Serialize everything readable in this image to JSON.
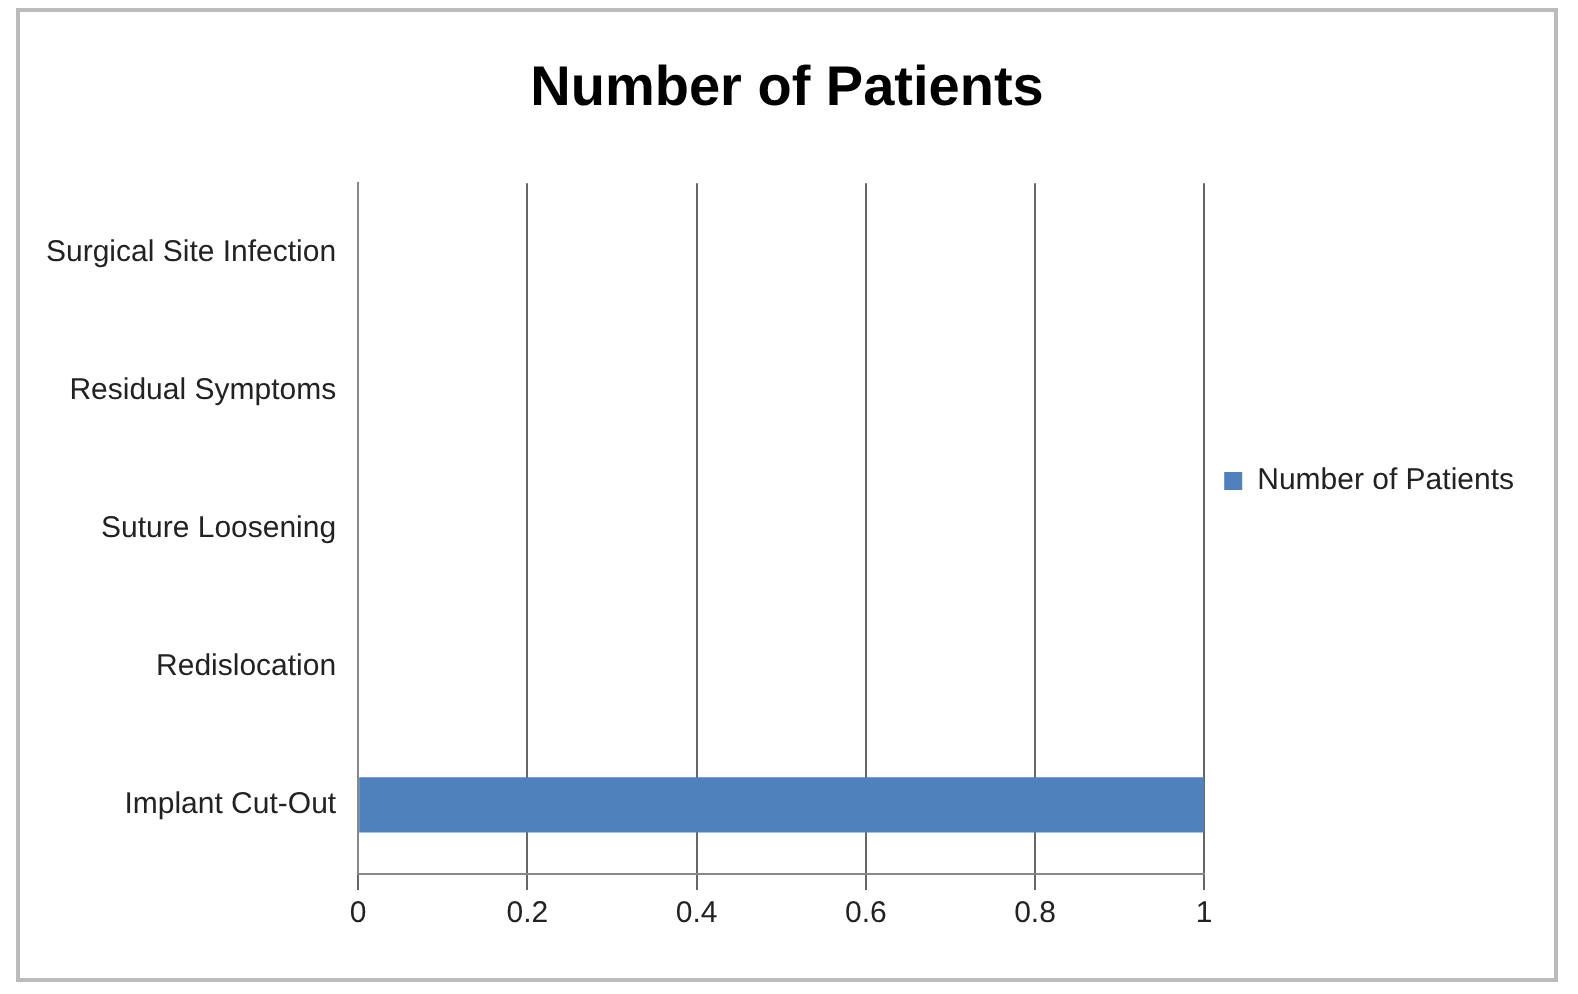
{
  "chart_data": {
    "type": "bar",
    "title": "Number of Patients",
    "orientation": "horizontal",
    "categories": [
      "Surgical Site Infection",
      "Residual Symptoms",
      "Suture Loosening",
      "Redislocation",
      "Implant Cut-Out"
    ],
    "series": [
      {
        "name": "Number of Patients",
        "color": "#4f81bd",
        "values": [
          0,
          0,
          0,
          0,
          1
        ]
      }
    ],
    "xlim": [
      0,
      1
    ],
    "xticks": [
      0,
      0.2,
      0.4,
      0.6,
      0.8,
      1
    ],
    "grid": "x",
    "legend": "right"
  }
}
